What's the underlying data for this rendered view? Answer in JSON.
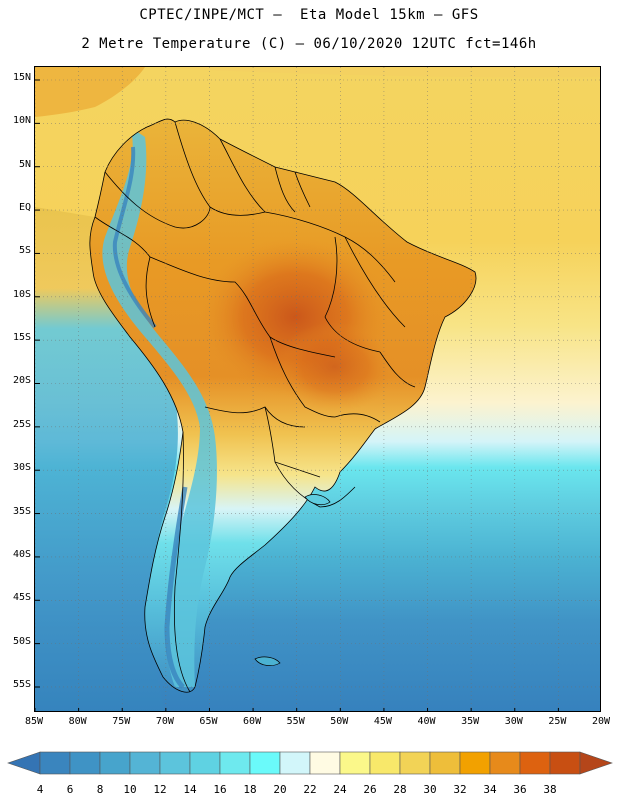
{
  "header": {
    "line1": "CPTEC/INPE/MCT –  Eta Model 15km – GFS",
    "line2": "2 Metre Temperature (C) – 06/10/2020 12UTC fct=146h"
  },
  "map": {
    "lon_range": [
      -85,
      -20
    ],
    "lat_range": [
      -58,
      16.5
    ],
    "lat_ticks": [
      {
        "value": 15,
        "label": "15N"
      },
      {
        "value": 10,
        "label": "10N"
      },
      {
        "value": 5,
        "label": "5N"
      },
      {
        "value": 0,
        "label": "EQ"
      },
      {
        "value": -5,
        "label": "5S"
      },
      {
        "value": -10,
        "label": "10S"
      },
      {
        "value": -15,
        "label": "15S"
      },
      {
        "value": -20,
        "label": "20S"
      },
      {
        "value": -25,
        "label": "25S"
      },
      {
        "value": -30,
        "label": "30S"
      },
      {
        "value": -35,
        "label": "35S"
      },
      {
        "value": -40,
        "label": "40S"
      },
      {
        "value": -45,
        "label": "45S"
      },
      {
        "value": -50,
        "label": "50S"
      },
      {
        "value": -55,
        "label": "55S"
      }
    ],
    "lon_ticks": [
      {
        "value": -85,
        "label": "85W"
      },
      {
        "value": -80,
        "label": "80W"
      },
      {
        "value": -75,
        "label": "75W"
      },
      {
        "value": -70,
        "label": "70W"
      },
      {
        "value": -65,
        "label": "65W"
      },
      {
        "value": -60,
        "label": "60W"
      },
      {
        "value": -55,
        "label": "55W"
      },
      {
        "value": -50,
        "label": "50W"
      },
      {
        "value": -45,
        "label": "45W"
      },
      {
        "value": -40,
        "label": "40W"
      },
      {
        "value": -35,
        "label": "35W"
      },
      {
        "value": -30,
        "label": "30W"
      },
      {
        "value": -25,
        "label": "25W"
      },
      {
        "value": -20,
        "label": "20W"
      }
    ]
  },
  "colorbar": {
    "values": [
      "4",
      "6",
      "8",
      "10",
      "12",
      "14",
      "16",
      "18",
      "20",
      "22",
      "24",
      "26",
      "28",
      "30",
      "32",
      "34",
      "36",
      "38"
    ],
    "colors": [
      "#3a85be",
      "#3f93c5",
      "#47a4cc",
      "#54b4d5",
      "#5cc4dc",
      "#5fd2e2",
      "#6ee9ee",
      "#6afafa",
      "#d2f6fa",
      "#fffbe3",
      "#fbf88a",
      "#f8e86a",
      "#f2d356",
      "#eebe3a",
      "#f2a100",
      "#e78a1b",
      "#dd6210",
      "#c84f12"
    ],
    "under_color": "#3474b4",
    "over_color": "#b5461a"
  }
}
